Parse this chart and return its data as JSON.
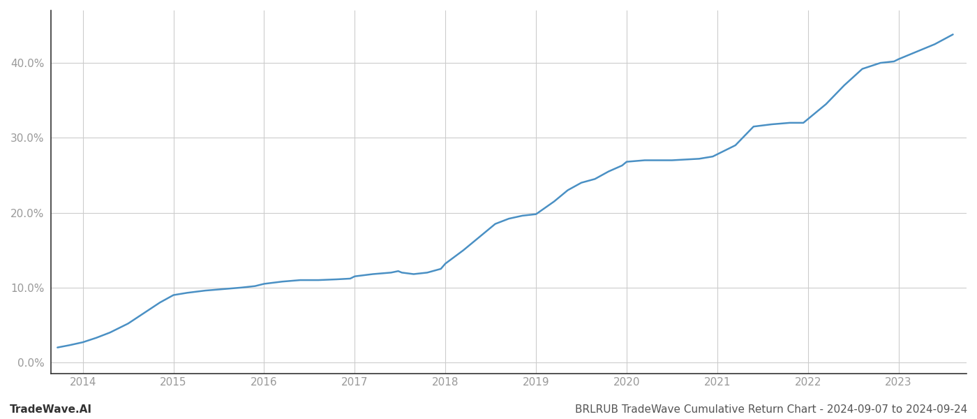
{
  "title": "BRLRUB TradeWave Cumulative Return Chart - 2024-09-07 to 2024-09-24",
  "left_label": "TradeWave.AI",
  "line_color": "#4a90c4",
  "background_color": "#ffffff",
  "grid_color": "#cccccc",
  "x_years": [
    2014,
    2015,
    2016,
    2017,
    2018,
    2019,
    2020,
    2021,
    2022,
    2023
  ],
  "x_data": [
    2013.72,
    2013.85,
    2014.0,
    2014.15,
    2014.3,
    2014.5,
    2014.7,
    2014.85,
    2015.0,
    2015.15,
    2015.35,
    2015.55,
    2015.75,
    2015.9,
    2016.0,
    2016.2,
    2016.4,
    2016.6,
    2016.8,
    2016.95,
    2017.0,
    2017.2,
    2017.4,
    2017.48,
    2017.52,
    2017.65,
    2017.8,
    2017.95,
    2018.0,
    2018.2,
    2018.4,
    2018.55,
    2018.7,
    2018.85,
    2019.0,
    2019.2,
    2019.35,
    2019.5,
    2019.65,
    2019.8,
    2019.95,
    2020.0,
    2020.2,
    2020.5,
    2020.8,
    2020.95,
    2021.0,
    2021.2,
    2021.4,
    2021.6,
    2021.8,
    2021.95,
    2022.0,
    2022.2,
    2022.4,
    2022.6,
    2022.8,
    2022.95,
    2023.0,
    2023.2,
    2023.4,
    2023.6
  ],
  "y_data": [
    2.0,
    2.3,
    2.7,
    3.3,
    4.0,
    5.2,
    6.8,
    8.0,
    9.0,
    9.3,
    9.6,
    9.8,
    10.0,
    10.2,
    10.5,
    10.8,
    11.0,
    11.0,
    11.1,
    11.2,
    11.5,
    11.8,
    12.0,
    12.2,
    12.0,
    11.8,
    12.0,
    12.5,
    13.2,
    15.0,
    17.0,
    18.5,
    19.2,
    19.6,
    19.8,
    21.5,
    23.0,
    24.0,
    24.5,
    25.5,
    26.3,
    26.8,
    27.0,
    27.0,
    27.2,
    27.5,
    27.8,
    29.0,
    31.5,
    31.8,
    32.0,
    32.0,
    32.5,
    34.5,
    37.0,
    39.2,
    40.0,
    40.2,
    40.5,
    41.5,
    42.5,
    43.8
  ],
  "yticks": [
    0.0,
    10.0,
    20.0,
    30.0,
    40.0
  ],
  "ylim": [
    -1.5,
    47
  ],
  "xlim": [
    2013.65,
    2023.75
  ],
  "title_fontsize": 11,
  "label_fontsize": 11,
  "tick_fontsize": 11,
  "tick_color": "#999999",
  "spine_color": "#333333"
}
